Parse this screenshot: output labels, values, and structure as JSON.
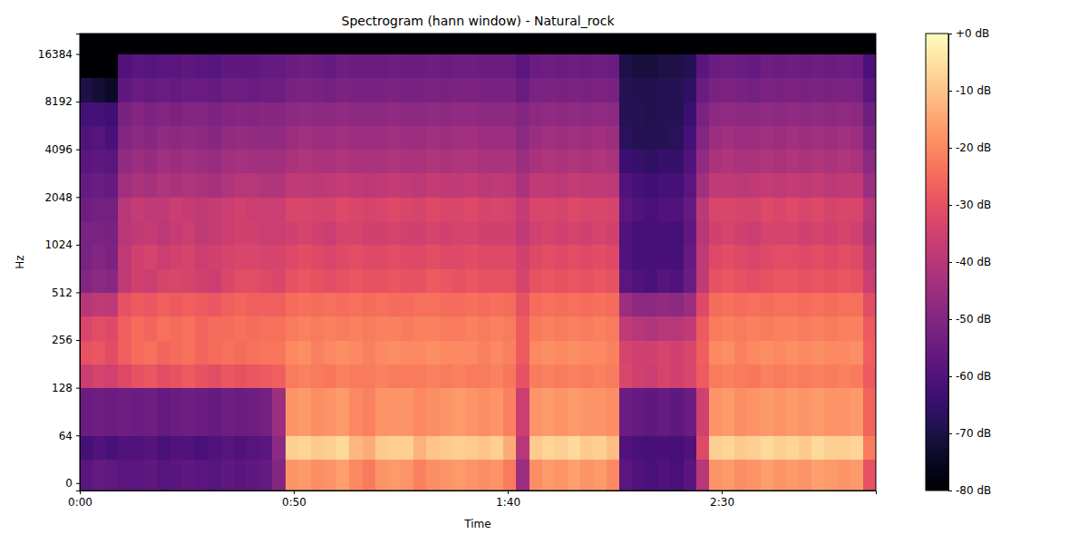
{
  "chart_data": {
    "type": "heatmap",
    "title": "Spectrogram (hann window) - Natural_rock",
    "x_label": "Time",
    "y_label": "Hz",
    "log": "y",
    "xlim": [
      0,
      186
    ],
    "ylim": [
      -10,
      22050
    ],
    "xticks": [
      {
        "value": 0,
        "label": "0:00"
      },
      {
        "value": 50,
        "label": "0:50"
      },
      {
        "value": 100,
        "label": "1:40"
      },
      {
        "value": 150,
        "label": "2:30"
      }
    ],
    "yticks": [
      0,
      64,
      128,
      256,
      512,
      1024,
      2048,
      4096,
      8192,
      16384
    ],
    "x_edges": [
      0,
      3,
      6,
      9,
      12,
      15,
      18,
      21,
      24,
      27,
      30,
      33,
      36,
      39,
      42,
      45,
      48,
      51,
      54,
      57,
      60,
      63,
      66,
      69,
      72,
      75,
      78,
      81,
      84,
      87,
      90,
      93,
      96,
      99,
      102,
      105,
      108,
      111,
      114,
      117,
      120,
      123,
      126,
      129,
      132,
      135,
      138,
      141,
      144,
      147,
      150,
      153,
      156,
      159,
      162,
      165,
      168,
      171,
      174,
      177,
      180,
      183,
      186
    ],
    "y_edges": [
      -10,
      32,
      64,
      128,
      181,
      256,
      362,
      512,
      724,
      1024,
      1448,
      2048,
      2896,
      4096,
      5793,
      8192,
      11585,
      16384,
      22050
    ],
    "z": [
      [
        -58,
        -62,
        -55,
        -36,
        -30,
        -33,
        -40,
        -50,
        -52,
        -52,
        -54,
        -56,
        -58,
        -60,
        -62,
        -70,
        -80,
        -80
      ],
      [
        -56,
        -60,
        -54,
        -34,
        -29,
        -31,
        -38,
        -48,
        -50,
        -51,
        -53,
        -55,
        -57,
        -59,
        -62,
        -72,
        -80,
        -80
      ],
      [
        -57,
        -61,
        -55,
        -35,
        -31,
        -32,
        -39,
        -49,
        -51,
        -52,
        -53,
        -56,
        -58,
        -61,
        -63,
        -74,
        -80,
        -80
      ],
      [
        -58,
        -60,
        -54,
        -32,
        -27,
        -27,
        -30,
        -38,
        -38,
        -40,
        -40,
        -44,
        -47,
        -50,
        -52,
        -57,
        -60,
        -80
      ],
      [
        -58,
        -60,
        -55,
        -30,
        -25,
        -25,
        -28,
        -35,
        -35,
        -38,
        -37,
        -42,
        -45,
        -48,
        -50,
        -55,
        -58,
        -80
      ],
      [
        -57,
        -59,
        -54,
        -29,
        -24,
        -26,
        -29,
        -36,
        -34,
        -37,
        -38,
        -43,
        -46,
        -49,
        -51,
        -56,
        -59,
        -80
      ],
      [
        -59,
        -61,
        -56,
        -31,
        -26,
        -24,
        -27,
        -34,
        -36,
        -39,
        -38,
        -41,
        -44,
        -47,
        -50,
        -55,
        -58,
        -80
      ],
      [
        -58,
        -60,
        -55,
        -30,
        -25,
        -25,
        -28,
        -33,
        -35,
        -37,
        -36,
        -42,
        -45,
        -48,
        -51,
        -56,
        -58,
        -80
      ],
      [
        -57,
        -60,
        -54,
        -28,
        -24,
        -24,
        -27,
        -34,
        -34,
        -36,
        -37,
        -41,
        -44,
        -47,
        -50,
        -55,
        -57,
        -80
      ],
      [
        -58,
        -61,
        -55,
        -30,
        -26,
        -26,
        -28,
        -35,
        -36,
        -38,
        -38,
        -42,
        -45,
        -48,
        -50,
        -55,
        -58,
        -80
      ],
      [
        -59,
        -60,
        -56,
        -31,
        -25,
        -25,
        -29,
        -36,
        -35,
        -37,
        -37,
        -43,
        -46,
        -49,
        -51,
        -56,
        -59,
        -80
      ],
      [
        -57,
        -59,
        -54,
        -29,
        -24,
        -25,
        -27,
        -33,
        -34,
        -36,
        -36,
        -41,
        -44,
        -47,
        -50,
        -54,
        -57,
        -80
      ],
      [
        -58,
        -60,
        -55,
        -30,
        -25,
        -24,
        -26,
        -31,
        -33,
        -35,
        -35,
        -40,
        -43,
        -46,
        -49,
        -54,
        -57,
        -80
      ],
      [
        -57,
        -59,
        -54,
        -29,
        -24,
        -25,
        -27,
        -31,
        -33,
        -35,
        -36,
        -40,
        -44,
        -47,
        -50,
        -55,
        -57,
        -80
      ],
      [
        -56,
        -58,
        -53,
        -28,
        -23,
        -24,
        -27,
        -32,
        -34,
        -36,
        -36,
        -41,
        -44,
        -47,
        -49,
        -54,
        -56,
        -80
      ],
      [
        -50,
        -48,
        -45,
        -27,
        -23,
        -24,
        -27,
        -33,
        -34,
        -36,
        -36,
        -41,
        -44,
        -47,
        -49,
        -54,
        -56,
        -80
      ],
      [
        -18,
        -8,
        -18,
        -22,
        -20,
        -22,
        -25,
        -30,
        -32,
        -35,
        -33,
        -38,
        -42,
        -45,
        -48,
        -52,
        -55,
        -80
      ],
      [
        -17,
        -7,
        -17,
        -21,
        -19,
        -21,
        -24,
        -29,
        -31,
        -34,
        -33,
        -38,
        -41,
        -44,
        -47,
        -51,
        -54,
        -80
      ],
      [
        -19,
        -9,
        -19,
        -22,
        -21,
        -22,
        -25,
        -30,
        -32,
        -35,
        -34,
        -39,
        -42,
        -45,
        -48,
        -52,
        -55,
        -80
      ],
      [
        -18,
        -8,
        -18,
        -23,
        -20,
        -21,
        -24,
        -31,
        -33,
        -36,
        -34,
        -38,
        -42,
        -45,
        -48,
        -53,
        -56,
        -80
      ],
      [
        -16,
        -6,
        -17,
        -21,
        -19,
        -22,
        -25,
        -30,
        -32,
        -34,
        -32,
        -37,
        -41,
        -44,
        -47,
        -51,
        -54,
        -80
      ],
      [
        -20,
        -12,
        -20,
        -22,
        -20,
        -21,
        -24,
        -29,
        -31,
        -34,
        -33,
        -38,
        -42,
        -45,
        -48,
        -52,
        -55,
        -80
      ],
      [
        -22,
        -14,
        -21,
        -22,
        -21,
        -22,
        -25,
        -30,
        -32,
        -35,
        -34,
        -39,
        -42,
        -45,
        -48,
        -52,
        -55,
        -80
      ],
      [
        -18,
        -9,
        -18,
        -21,
        -20,
        -21,
        -24,
        -30,
        -32,
        -35,
        -33,
        -38,
        -42,
        -45,
        -48,
        -52,
        -55,
        -80
      ],
      [
        -17,
        -8,
        -18,
        -22,
        -19,
        -21,
        -25,
        -29,
        -31,
        -34,
        -32,
        -37,
        -41,
        -44,
        -47,
        -51,
        -54,
        -80
      ],
      [
        -18,
        -8,
        -18,
        -22,
        -20,
        -22,
        -25,
        -30,
        -32,
        -35,
        -33,
        -38,
        -42,
        -45,
        -48,
        -52,
        -55,
        -80
      ],
      [
        -21,
        -13,
        -20,
        -22,
        -20,
        -21,
        -24,
        -30,
        -32,
        -35,
        -34,
        -39,
        -42,
        -45,
        -48,
        -52,
        -55,
        -80
      ],
      [
        -19,
        -10,
        -19,
        -21,
        -19,
        -21,
        -24,
        -28,
        -31,
        -34,
        -32,
        -37,
        -41,
        -44,
        -47,
        -51,
        -54,
        -80
      ],
      [
        -18,
        -9,
        -18,
        -22,
        -20,
        -22,
        -25,
        -29,
        -32,
        -35,
        -33,
        -38,
        -42,
        -45,
        -48,
        -52,
        -55,
        -80
      ],
      [
        -17,
        -8,
        -17,
        -21,
        -20,
        -22,
        -25,
        -30,
        -32,
        -34,
        -33,
        -38,
        -41,
        -44,
        -47,
        -51,
        -54,
        -80
      ],
      [
        -18,
        -9,
        -18,
        -22,
        -20,
        -21,
        -24,
        -29,
        -31,
        -34,
        -32,
        -37,
        -41,
        -44,
        -47,
        -51,
        -54,
        -80
      ],
      [
        -19,
        -10,
        -19,
        -22,
        -21,
        -22,
        -25,
        -30,
        -32,
        -35,
        -34,
        -39,
        -42,
        -45,
        -48,
        -52,
        -55,
        -80
      ],
      [
        -18,
        -8,
        -18,
        -21,
        -20,
        -21,
        -24,
        -30,
        -32,
        -35,
        -33,
        -38,
        -42,
        -45,
        -48,
        -52,
        -55,
        -80
      ],
      [
        -22,
        -14,
        -21,
        -23,
        -21,
        -22,
        -25,
        -30,
        -32,
        -35,
        -34,
        -39,
        -42,
        -45,
        -48,
        -52,
        -55,
        -80
      ],
      [
        -45,
        -40,
        -36,
        -30,
        -28,
        -28,
        -30,
        -34,
        -35,
        -38,
        -37,
        -42,
        -45,
        -48,
        -50,
        -55,
        -58,
        -80
      ],
      [
        -19,
        -9,
        -18,
        -22,
        -20,
        -22,
        -25,
        -30,
        -32,
        -35,
        -33,
        -38,
        -42,
        -45,
        -48,
        -52,
        -55,
        -80
      ],
      [
        -17,
        -7,
        -17,
        -21,
        -19,
        -21,
        -24,
        -29,
        -31,
        -34,
        -33,
        -38,
        -41,
        -44,
        -47,
        -51,
        -54,
        -80
      ],
      [
        -18,
        -8,
        -18,
        -22,
        -20,
        -22,
        -25,
        -30,
        -32,
        -35,
        -34,
        -39,
        -42,
        -45,
        -48,
        -52,
        -55,
        -80
      ],
      [
        -16,
        -6,
        -17,
        -21,
        -19,
        -21,
        -24,
        -29,
        -31,
        -34,
        -32,
        -37,
        -41,
        -44,
        -47,
        -51,
        -54,
        -80
      ],
      [
        -18,
        -9,
        -18,
        -22,
        -20,
        -22,
        -25,
        -30,
        -32,
        -35,
        -33,
        -38,
        -42,
        -45,
        -48,
        -52,
        -55,
        -80
      ],
      [
        -17,
        -8,
        -18,
        -21,
        -20,
        -21,
        -24,
        -29,
        -31,
        -34,
        -33,
        -38,
        -41,
        -44,
        -47,
        -51,
        -54,
        -80
      ],
      [
        -20,
        -11,
        -19,
        -22,
        -21,
        -22,
        -25,
        -30,
        -32,
        -35,
        -34,
        -39,
        -42,
        -45,
        -48,
        -52,
        -55,
        -80
      ],
      [
        -58,
        -60,
        -55,
        -33,
        -34,
        -38,
        -45,
        -58,
        -60,
        -60,
        -58,
        -60,
        -64,
        -67,
        -68,
        -68,
        -70,
        -80
      ],
      [
        -60,
        -61,
        -56,
        -35,
        -35,
        -40,
        -48,
        -60,
        -62,
        -62,
        -60,
        -62,
        -65,
        -68,
        -68,
        -69,
        -71,
        -80
      ],
      [
        -61,
        -62,
        -57,
        -36,
        -35,
        -41,
        -48,
        -61,
        -62,
        -62,
        -61,
        -63,
        -66,
        -68,
        -69,
        -69,
        -71,
        -80
      ],
      [
        -60,
        -61,
        -56,
        -34,
        -34,
        -40,
        -47,
        -59,
        -61,
        -61,
        -60,
        -62,
        -65,
        -68,
        -68,
        -68,
        -70,
        -80
      ],
      [
        -61,
        -62,
        -57,
        -35,
        -35,
        -40,
        -48,
        -60,
        -62,
        -62,
        -60,
        -62,
        -65,
        -67,
        -68,
        -68,
        -70,
        -80
      ],
      [
        -58,
        -60,
        -55,
        -33,
        -33,
        -38,
        -45,
        -55,
        -56,
        -57,
        -56,
        -58,
        -60,
        -62,
        -64,
        -66,
        -68,
        -80
      ],
      [
        -40,
        -32,
        -35,
        -28,
        -27,
        -28,
        -32,
        -38,
        -38,
        -40,
        -39,
        -44,
        -47,
        -50,
        -52,
        -55,
        -58,
        -80
      ],
      [
        -18,
        -8,
        -18,
        -22,
        -20,
        -22,
        -25,
        -30,
        -32,
        -35,
        -33,
        -38,
        -42,
        -45,
        -48,
        -52,
        -55,
        -80
      ],
      [
        -17,
        -7,
        -17,
        -21,
        -19,
        -21,
        -24,
        -29,
        -31,
        -34,
        -33,
        -38,
        -41,
        -44,
        -47,
        -51,
        -54,
        -80
      ],
      [
        -19,
        -9,
        -19,
        -22,
        -21,
        -22,
        -25,
        -30,
        -32,
        -35,
        -34,
        -39,
        -42,
        -45,
        -48,
        -52,
        -55,
        -80
      ],
      [
        -18,
        -8,
        -18,
        -23,
        -20,
        -21,
        -24,
        -31,
        -33,
        -36,
        -34,
        -38,
        -42,
        -45,
        -48,
        -53,
        -56,
        -80
      ],
      [
        -16,
        -6,
        -17,
        -21,
        -19,
        -22,
        -25,
        -30,
        -32,
        -34,
        -32,
        -37,
        -41,
        -44,
        -47,
        -51,
        -54,
        -80
      ],
      [
        -18,
        -8,
        -18,
        -22,
        -20,
        -21,
        -24,
        -29,
        -31,
        -34,
        -33,
        -38,
        -42,
        -45,
        -48,
        -52,
        -55,
        -80
      ],
      [
        -17,
        -7,
        -17,
        -21,
        -19,
        -21,
        -24,
        -29,
        -31,
        -34,
        -32,
        -37,
        -41,
        -44,
        -47,
        -51,
        -54,
        -80
      ],
      [
        -18,
        -9,
        -18,
        -22,
        -20,
        -22,
        -25,
        -30,
        -32,
        -35,
        -33,
        -38,
        -42,
        -45,
        -48,
        -52,
        -55,
        -80
      ],
      [
        -16,
        -6,
        -17,
        -21,
        -19,
        -21,
        -24,
        -29,
        -31,
        -34,
        -32,
        -37,
        -41,
        -44,
        -47,
        -51,
        -54,
        -80
      ],
      [
        -17,
        -8,
        -18,
        -22,
        -20,
        -22,
        -25,
        -30,
        -32,
        -35,
        -34,
        -39,
        -42,
        -45,
        -48,
        -52,
        -55,
        -80
      ],
      [
        -18,
        -8,
        -18,
        -21,
        -20,
        -21,
        -24,
        -29,
        -31,
        -34,
        -33,
        -38,
        -41,
        -44,
        -47,
        -51,
        -54,
        -80
      ],
      [
        -17,
        -7,
        -17,
        -22,
        -19,
        -21,
        -24,
        -30,
        -32,
        -35,
        -33,
        -38,
        -42,
        -45,
        -48,
        -52,
        -55,
        -80
      ],
      [
        -30,
        -22,
        -26,
        -28,
        -27,
        -28,
        -31,
        -36,
        -38,
        -41,
        -40,
        -45,
        -48,
        -51,
        -54,
        -58,
        -61,
        -80
      ]
    ],
    "zlim": [
      -80,
      0
    ],
    "zticks": [
      {
        "value": 0,
        "label": "+0 dB"
      },
      {
        "value": -10,
        "label": "-10 dB"
      },
      {
        "value": -20,
        "label": "-20 dB"
      },
      {
        "value": -30,
        "label": "-30 dB"
      },
      {
        "value": -40,
        "label": "-40 dB"
      },
      {
        "value": -50,
        "label": "-50 dB"
      },
      {
        "value": -60,
        "label": "-60 dB"
      },
      {
        "value": -70,
        "label": "-70 dB"
      },
      {
        "value": -80,
        "label": "-80 dB"
      }
    ]
  }
}
